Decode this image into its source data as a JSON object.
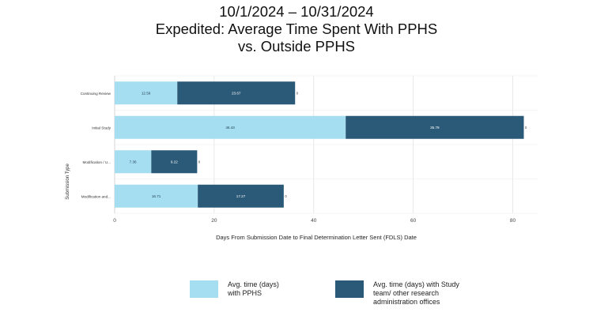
{
  "title": {
    "line1": "10/1/2024 – 10/31/2024",
    "line2": "Expedited: Average Time Spent With PPHS",
    "line3": "vs. Outside PPHS"
  },
  "chart_data": {
    "type": "bar",
    "orientation": "horizontal",
    "stacked": true,
    "title": "10/1/2024 – 10/31/2024 Expedited: Average Time Spent With PPHS vs. Outside PPHS",
    "xlabel": "Days From Submission Date to Final Determination Letter Sent (FDLS) Date",
    "ylabel": "Submission Type",
    "xlim": [
      0,
      85
    ],
    "xticks": [
      0,
      20,
      40,
      60,
      80
    ],
    "grid": true,
    "categories": [
      "Continuing Review",
      "Initial Study",
      "Modification / U...",
      "Modification and..."
    ],
    "series": [
      {
        "name": "Avg. time (days) with PPHS",
        "color": "#a4def0",
        "values": [
          12.59,
          46.43,
          7.36,
          16.71
        ],
        "labels": [
          "12.59",
          "46.43",
          "7.36",
          "16.71"
        ]
      },
      {
        "name": "Avg. time (days) with Study team/ other research administration offices",
        "color": "#2b5a78",
        "values": [
          23.67,
          35.79,
          9.22,
          17.27
        ],
        "labels": [
          "23.67",
          "35.79",
          "9.22",
          "17.27"
        ]
      }
    ],
    "end_labels": [
      "0",
      "0",
      "0",
      "0"
    ],
    "legend": "bottom",
    "legend_items": [
      {
        "line1": "Avg. time (days)",
        "line2": "with PPHS",
        "line3": ""
      },
      {
        "line1": "Avg. time (days) with Study",
        "line2": "team/ other research",
        "line3": "administration offices"
      }
    ]
  }
}
